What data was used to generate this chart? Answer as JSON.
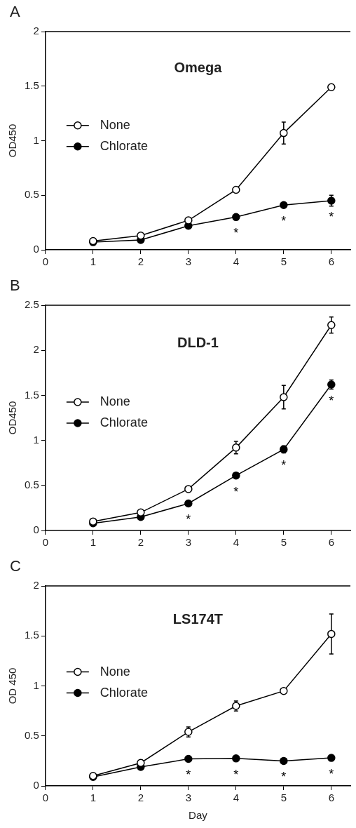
{
  "chart_data": [
    {
      "type": "line",
      "title": "Omega",
      "ylabel": "OD450",
      "x": [
        1,
        2,
        3,
        4,
        5,
        6
      ],
      "xlim": [
        0,
        6.4
      ],
      "xticks": [
        0,
        1,
        2,
        3,
        4,
        5,
        6
      ],
      "ylim": [
        0,
        2
      ],
      "yticks": [
        0,
        0.5,
        1,
        1.5,
        2
      ],
      "legend": "left",
      "marker": "circle",
      "grid": false,
      "series": [
        {
          "name": "None",
          "color": "#000000",
          "values": [
            0.08,
            0.13,
            0.27,
            0.55,
            1.07,
            1.49
          ],
          "errors": [
            null,
            null,
            null,
            null,
            0.1,
            null
          ]
        },
        {
          "name": "Chlorate",
          "color": "#000000",
          "values": [
            0.07,
            0.09,
            0.22,
            0.3,
            0.41,
            0.45
          ],
          "errors": [
            null,
            null,
            null,
            null,
            null,
            0.05
          ]
        }
      ],
      "annotations": [
        "A",
        {
          "text": "*",
          "x": 4,
          "y": 0.3
        },
        {
          "text": "*",
          "x": 5,
          "y": 0.41
        },
        {
          "text": "*",
          "x": 6,
          "y": 0.45
        }
      ]
    },
    {
      "type": "line",
      "title": "DLD-1",
      "ylabel": "OD450",
      "x": [
        1,
        2,
        3,
        4,
        5,
        6
      ],
      "xlim": [
        0,
        6.4
      ],
      "xticks": [
        0,
        1,
        2,
        3,
        4,
        5,
        6
      ],
      "ylim": [
        0,
        2.5
      ],
      "yticks": [
        0,
        0.5,
        1,
        1.5,
        2,
        2.5
      ],
      "legend": "left",
      "marker": "circle",
      "grid": false,
      "series": [
        {
          "name": "None",
          "color": "#000000",
          "values": [
            0.1,
            0.2,
            0.46,
            0.92,
            1.48,
            2.28
          ],
          "errors": [
            null,
            null,
            null,
            0.07,
            0.13,
            0.09
          ]
        },
        {
          "name": "Chlorate",
          "color": "#000000",
          "values": [
            0.08,
            0.15,
            0.3,
            0.61,
            0.9,
            1.62
          ],
          "errors": [
            null,
            null,
            null,
            null,
            0.04,
            0.05
          ]
        }
      ],
      "annotations": [
        "B",
        {
          "text": "*",
          "x": 3,
          "y": 0.3
        },
        {
          "text": "*",
          "x": 4,
          "y": 0.61
        },
        {
          "text": "*",
          "x": 5,
          "y": 0.9
        },
        {
          "text": "*",
          "x": 6,
          "y": 1.62
        }
      ]
    },
    {
      "type": "line",
      "title": "LS174T",
      "xlabel": "Day",
      "ylabel": "OD 450",
      "x": [
        1,
        2,
        3,
        4,
        5,
        6
      ],
      "xlim": [
        0,
        6.4
      ],
      "xticks": [
        0,
        1,
        2,
        3,
        4,
        5,
        6
      ],
      "ylim": [
        0,
        2
      ],
      "yticks": [
        0,
        0.5,
        1,
        1.5,
        2
      ],
      "legend": "left",
      "marker": "circle",
      "grid": false,
      "series": [
        {
          "name": "None",
          "color": "#000000",
          "values": [
            0.1,
            0.23,
            0.54,
            0.8,
            0.95,
            1.52
          ],
          "errors": [
            null,
            0.03,
            0.05,
            0.05,
            null,
            0.2
          ]
        },
        {
          "name": "Chlorate",
          "color": "#000000",
          "values": [
            0.09,
            0.19,
            0.27,
            0.275,
            0.25,
            0.28
          ]
        }
      ],
      "annotations": [
        "C",
        {
          "text": "*",
          "x": 3,
          "y": 0.27
        },
        {
          "text": "*",
          "x": 4,
          "y": 0.275
        },
        {
          "text": "*",
          "x": 5,
          "y": 0.25
        },
        {
          "text": "*",
          "x": 6,
          "y": 0.28
        }
      ]
    }
  ]
}
